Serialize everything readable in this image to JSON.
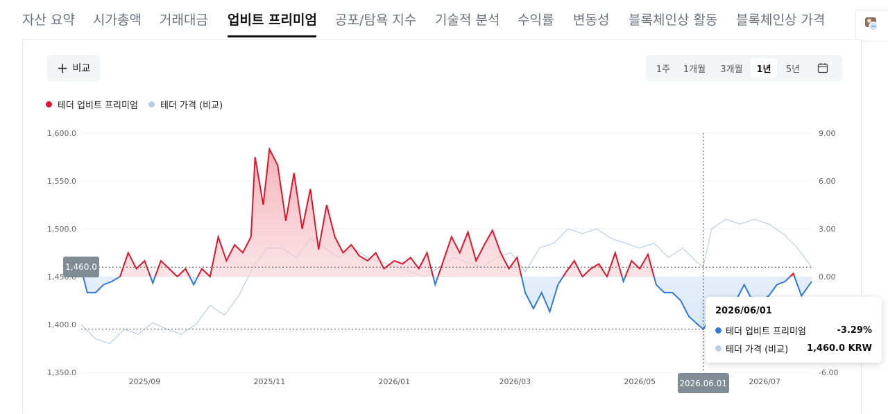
{
  "tabs": [
    {
      "label": "자산 요약"
    },
    {
      "label": "시가총액"
    },
    {
      "label": "거래대금"
    },
    {
      "label": "업비트 프리미엄"
    },
    {
      "label": "공포/탐욕 지수"
    },
    {
      "label": "기술적 분석"
    },
    {
      "label": "수익률"
    },
    {
      "label": "변동성"
    },
    {
      "label": "블록체인상 활동"
    },
    {
      "label": "블록체인상 가격"
    }
  ],
  "active_tab": "업비트 프리미엄",
  "toolbar": {
    "compare_label": "비교",
    "ranges": [
      "1주",
      "1개월",
      "3개월",
      "1년",
      "5년"
    ],
    "active_range": "1년"
  },
  "legend": {
    "premium": "테더 업비트 프리미엄",
    "price": "테더 가격 (비교)"
  },
  "colors": {
    "premium_positive": "#e0142b",
    "premium_negative": "#2f7ad8",
    "price_line": "#b9cfe8",
    "fill_positive": "#f6c5cb",
    "fill_negative": "#e6eff9"
  },
  "tooltip": {
    "date": "2026/06/01",
    "premium_label": "테더 업비트 프리미엄",
    "premium_value": "-3.29%",
    "price_label": "테더 가격 (비교)",
    "price_value": "1,460.0 KRW"
  },
  "crosshair": {
    "x_label": "2026.06.01",
    "y_label": "1,460.0"
  },
  "chart_data": {
    "type": "line",
    "x_range": [
      "2025-08-01",
      "2026-07-24"
    ],
    "x_ticks": [
      "2025/09",
      "2025/11",
      "2026/01",
      "2026/03",
      "2026/05",
      "2026/07"
    ],
    "left_axis": {
      "ticks": [
        "1,600.0",
        "1,550.0",
        "1,500.0",
        "1,450.0",
        "1,400.0",
        "1,350.0"
      ],
      "range": [
        1350,
        1600
      ]
    },
    "right_axis": {
      "ticks": [
        "9.00",
        "6.00",
        "3.00",
        "0.00",
        "-3.00",
        "-6.00"
      ],
      "range": [
        -6,
        9
      ]
    },
    "series": [
      {
        "name": "테더 업비트 프리미엄",
        "axis": "right",
        "points": [
          [
            "2025-08-01",
            0.5
          ],
          [
            "2025-08-04",
            -1.0
          ],
          [
            "2025-08-08",
            -1.0
          ],
          [
            "2025-08-12",
            -0.5
          ],
          [
            "2025-08-16",
            -0.3
          ],
          [
            "2025-08-20",
            0.0
          ],
          [
            "2025-08-24",
            1.5
          ],
          [
            "2025-08-28",
            0.5
          ],
          [
            "2025-09-01",
            1.0
          ],
          [
            "2025-09-05",
            -0.4
          ],
          [
            "2025-09-09",
            1.0
          ],
          [
            "2025-09-13",
            0.5
          ],
          [
            "2025-09-17",
            0.0
          ],
          [
            "2025-09-21",
            0.5
          ],
          [
            "2025-09-25",
            -0.5
          ],
          [
            "2025-09-29",
            0.5
          ],
          [
            "2025-10-03",
            0.0
          ],
          [
            "2025-10-07",
            2.5
          ],
          [
            "2025-10-11",
            1.0
          ],
          [
            "2025-10-15",
            2.0
          ],
          [
            "2025-10-19",
            1.5
          ],
          [
            "2025-10-23",
            2.5
          ],
          [
            "2025-10-25",
            7.5
          ],
          [
            "2025-10-29",
            4.5
          ],
          [
            "2025-11-01",
            8.0
          ],
          [
            "2025-11-05",
            7.0
          ],
          [
            "2025-11-09",
            3.5
          ],
          [
            "2025-11-13",
            6.5
          ],
          [
            "2025-11-17",
            3.0
          ],
          [
            "2025-11-21",
            5.5
          ],
          [
            "2025-11-25",
            1.7
          ],
          [
            "2025-11-29",
            4.5
          ],
          [
            "2025-12-03",
            2.5
          ],
          [
            "2025-12-07",
            1.5
          ],
          [
            "2025-12-11",
            2.0
          ],
          [
            "2025-12-15",
            1.3
          ],
          [
            "2025-12-19",
            1.0
          ],
          [
            "2025-12-23",
            1.5
          ],
          [
            "2025-12-27",
            0.5
          ],
          [
            "2026-01-01",
            1.0
          ],
          [
            "2026-01-05",
            0.8
          ],
          [
            "2026-01-09",
            1.2
          ],
          [
            "2026-01-13",
            0.5
          ],
          [
            "2026-01-17",
            1.5
          ],
          [
            "2026-01-21",
            -0.5
          ],
          [
            "2026-01-25",
            1.0
          ],
          [
            "2026-01-29",
            2.5
          ],
          [
            "2026-02-02",
            1.5
          ],
          [
            "2026-02-06",
            2.8
          ],
          [
            "2026-02-10",
            1.0
          ],
          [
            "2026-02-14",
            2.0
          ],
          [
            "2026-02-18",
            2.9
          ],
          [
            "2026-02-22",
            1.5
          ],
          [
            "2026-02-26",
            0.5
          ],
          [
            "2026-03-02",
            1.2
          ],
          [
            "2026-03-06",
            -1.0
          ],
          [
            "2026-03-10",
            -2.0
          ],
          [
            "2026-03-14",
            -1.0
          ],
          [
            "2026-03-18",
            -2.2
          ],
          [
            "2026-03-22",
            -0.5
          ],
          [
            "2026-03-26",
            0.3
          ],
          [
            "2026-03-30",
            1.0
          ],
          [
            "2026-04-03",
            0.0
          ],
          [
            "2026-04-07",
            0.5
          ],
          [
            "2026-04-11",
            0.8
          ],
          [
            "2026-04-15",
            0.0
          ],
          [
            "2026-04-19",
            1.5
          ],
          [
            "2026-04-23",
            -0.3
          ],
          [
            "2026-04-27",
            1.0
          ],
          [
            "2026-05-01",
            0.5
          ],
          [
            "2026-05-05",
            1.4
          ],
          [
            "2026-05-09",
            -0.5
          ],
          [
            "2026-05-13",
            -1.0
          ],
          [
            "2026-05-17",
            -1.0
          ],
          [
            "2026-05-21",
            -1.5
          ],
          [
            "2026-05-25",
            -2.5
          ],
          [
            "2026-06-01",
            -3.3
          ],
          [
            "2026-06-05",
            -2.5
          ],
          [
            "2026-06-09",
            -3.0
          ],
          [
            "2026-06-13",
            -2.0
          ],
          [
            "2026-06-17",
            -1.5
          ],
          [
            "2026-06-21",
            -0.5
          ],
          [
            "2026-06-25",
            -1.5
          ],
          [
            "2026-06-29",
            -1.5
          ],
          [
            "2026-07-03",
            -1.2
          ],
          [
            "2026-07-07",
            -0.5
          ],
          [
            "2026-07-11",
            -0.3
          ],
          [
            "2026-07-15",
            0.2
          ],
          [
            "2026-07-19",
            -1.2
          ],
          [
            "2026-07-24",
            -0.3
          ]
        ]
      },
      {
        "name": "테더 가격 (비교)",
        "axis": "left",
        "points": [
          [
            "2025-08-01",
            1400
          ],
          [
            "2025-08-08",
            1385
          ],
          [
            "2025-08-15",
            1380
          ],
          [
            "2025-08-22",
            1395
          ],
          [
            "2025-08-29",
            1390
          ],
          [
            "2025-09-05",
            1402
          ],
          [
            "2025-09-12",
            1395
          ],
          [
            "2025-09-19",
            1390
          ],
          [
            "2025-09-26",
            1400
          ],
          [
            "2025-10-03",
            1420
          ],
          [
            "2025-10-10",
            1410
          ],
          [
            "2025-10-17",
            1430
          ],
          [
            "2025-10-24",
            1460
          ],
          [
            "2025-10-31",
            1480
          ],
          [
            "2025-11-07",
            1480
          ],
          [
            "2025-11-14",
            1470
          ],
          [
            "2025-11-21",
            1490
          ],
          [
            "2025-11-28",
            1480
          ],
          [
            "2025-12-05",
            1470
          ],
          [
            "2025-12-12",
            1480
          ],
          [
            "2025-12-19",
            1470
          ],
          [
            "2025-12-26",
            1465
          ],
          [
            "2026-01-02",
            1460
          ],
          [
            "2026-01-09",
            1455
          ],
          [
            "2026-01-16",
            1450
          ],
          [
            "2026-01-23",
            1460
          ],
          [
            "2026-01-30",
            1470
          ],
          [
            "2026-02-06",
            1465
          ],
          [
            "2026-02-13",
            1460
          ],
          [
            "2026-02-20",
            1470
          ],
          [
            "2026-02-27",
            1475
          ],
          [
            "2026-03-06",
            1455
          ],
          [
            "2026-03-13",
            1480
          ],
          [
            "2026-03-20",
            1485
          ],
          [
            "2026-03-27",
            1500
          ],
          [
            "2026-04-03",
            1495
          ],
          [
            "2026-04-10",
            1500
          ],
          [
            "2026-04-17",
            1490
          ],
          [
            "2026-04-24",
            1485
          ],
          [
            "2026-05-01",
            1480
          ],
          [
            "2026-05-08",
            1485
          ],
          [
            "2026-05-15",
            1470
          ],
          [
            "2026-05-22",
            1480
          ],
          [
            "2026-05-29",
            1465
          ],
          [
            "2026-06-01",
            1460
          ],
          [
            "2026-06-05",
            1500
          ],
          [
            "2026-06-12",
            1510
          ],
          [
            "2026-06-19",
            1505
          ],
          [
            "2026-06-26",
            1510
          ],
          [
            "2026-07-03",
            1505
          ],
          [
            "2026-07-10",
            1495
          ],
          [
            "2026-07-17",
            1480
          ],
          [
            "2026-07-24",
            1460
          ]
        ]
      }
    ],
    "crosshair_date": "2026-06-01",
    "crosshair_premium": -3.29,
    "crosshair_price": 1460.0
  }
}
